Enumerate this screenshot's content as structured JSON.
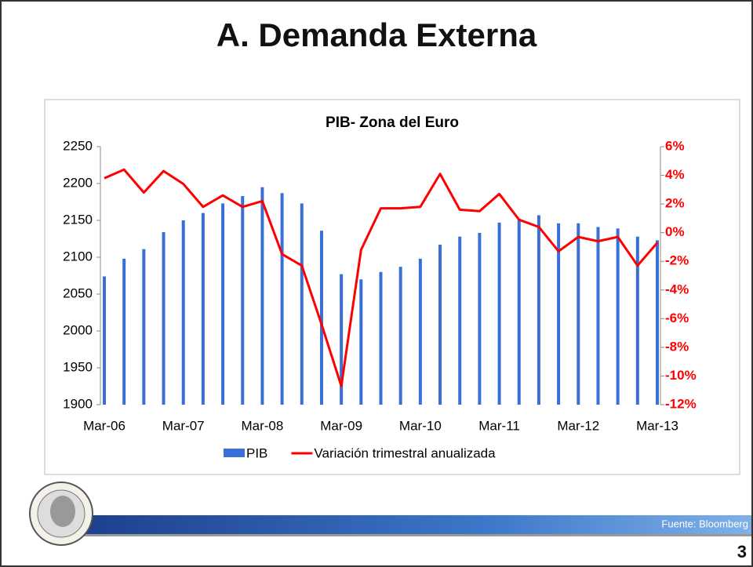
{
  "slide": {
    "title": "A. Demanda Externa",
    "source": "Fuente: Bloomberg",
    "page": "3"
  },
  "chart_data": {
    "type": "bar-line",
    "title": "PIB- Zona del Euro",
    "categories": [
      "Mar-06",
      null,
      null,
      null,
      "Mar-07",
      null,
      null,
      null,
      "Mar-08",
      null,
      null,
      null,
      "Mar-09",
      null,
      null,
      null,
      "Mar-10",
      null,
      null,
      null,
      "Mar-11",
      null,
      null,
      null,
      "Mar-12",
      null,
      null,
      null,
      "Mar-13"
    ],
    "series": [
      {
        "name": "PIB",
        "type": "bar",
        "color": "#3a6fd8",
        "axis": "y",
        "values": [
          2074,
          2098,
          2111,
          2134,
          2150,
          2160,
          2173,
          2183,
          2195,
          2187,
          2173,
          2136,
          2077,
          2070,
          2080,
          2087,
          2098,
          2117,
          2128,
          2133,
          2147,
          2152,
          2157,
          2146,
          2146,
          2141,
          2139,
          2128,
          2123
        ]
      },
      {
        "name": "Variación trimestral anualizada",
        "type": "line",
        "color": "#ff0000",
        "axis": "y2",
        "values": [
          3.8,
          4.4,
          2.8,
          4.3,
          3.4,
          1.8,
          2.6,
          1.8,
          2.2,
          -1.5,
          -2.3,
          -6.4,
          -10.7,
          -1.2,
          1.7,
          1.7,
          1.8,
          4.1,
          1.6,
          1.5,
          2.7,
          0.9,
          0.4,
          -1.3,
          -0.3,
          -0.6,
          -0.3,
          -2.3,
          -0.7
        ]
      }
    ],
    "ylim": [
      1900,
      2250
    ],
    "yticks": [
      1900,
      1950,
      2000,
      2050,
      2100,
      2150,
      2200,
      2250
    ],
    "y2lim": [
      -12,
      6
    ],
    "y2ticks": [
      {
        "value": -12,
        "label": "-12%"
      },
      {
        "value": -10,
        "label": "-10%"
      },
      {
        "value": -8,
        "label": "-8%"
      },
      {
        "value": -6,
        "label": "-6%"
      },
      {
        "value": -4,
        "label": "-4%"
      },
      {
        "value": -2,
        "label": "-2%"
      },
      {
        "value": 0,
        "label": "0%"
      },
      {
        "value": 2,
        "label": "2%"
      },
      {
        "value": 4,
        "label": "4%"
      },
      {
        "value": 6,
        "label": "6%"
      }
    ],
    "legend": "bottom"
  }
}
